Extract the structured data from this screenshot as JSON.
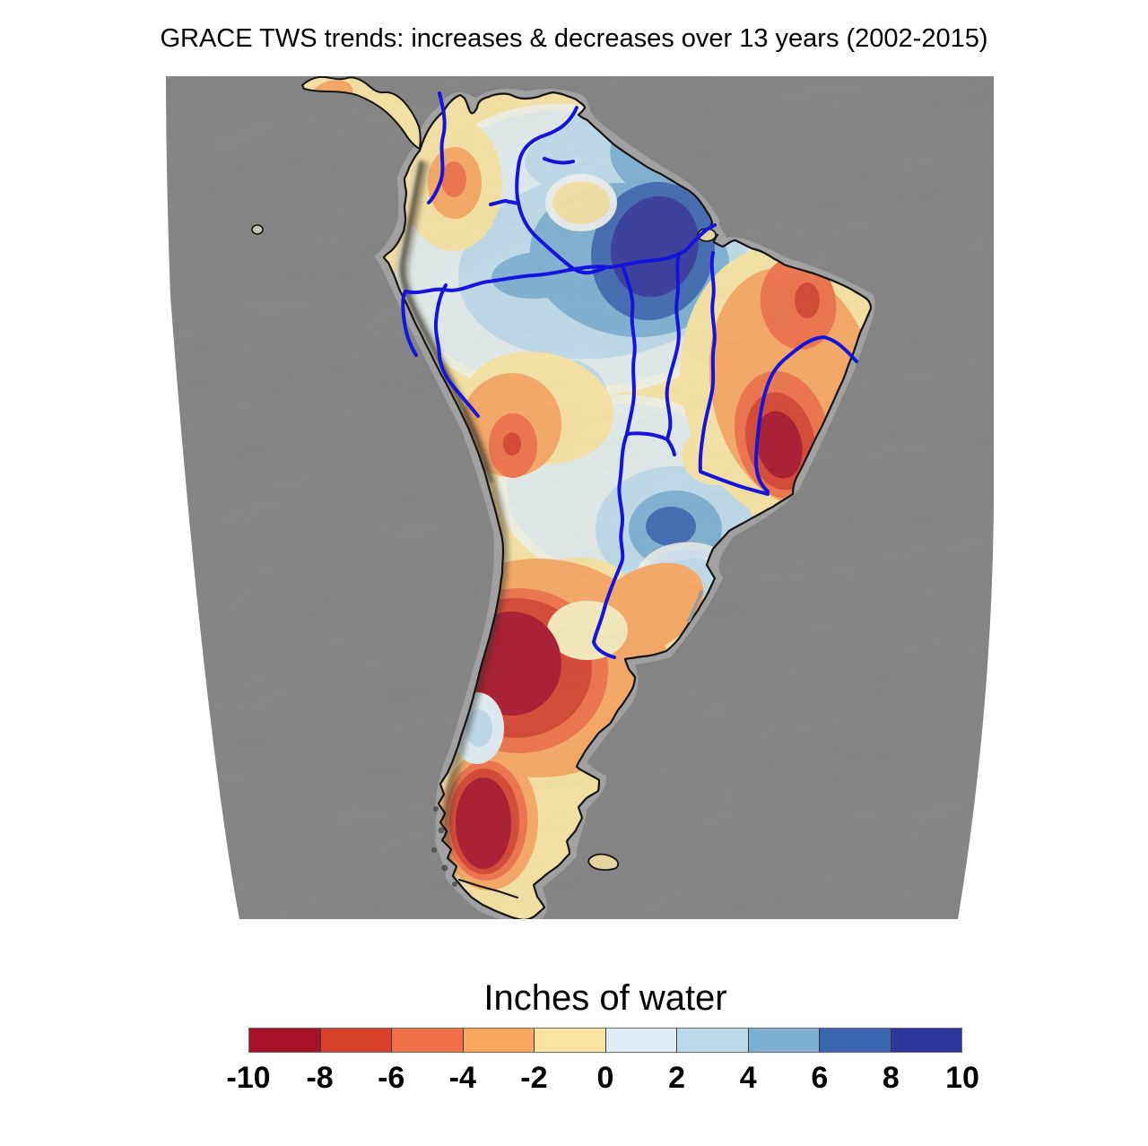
{
  "title": "GRACE TWS trends: increases & decreases over 13 years (2002-2015)",
  "colorbar": {
    "label": "Inches of water",
    "tick_labels": [
      "-10",
      "-8",
      "-6",
      "-4",
      "-2",
      "0",
      "2",
      "4",
      "6",
      "8",
      "10"
    ],
    "segment_colors": [
      "#a81227",
      "#d6402d",
      "#ef6f46",
      "#f9a760",
      "#f8e3a2",
      "#e0edf4",
      "#bcdcea",
      "#7bafd3",
      "#3a67b1",
      "#2f359b"
    ]
  },
  "map": {
    "subject": "South America terrestrial water storage trend, shaded-relief base",
    "ocean_color": "#888888",
    "land_relief_color": "#f2efe6",
    "shelf_halo_color": "#bdbdbd",
    "river_color": "#1414dd",
    "coastline_color": "#141414",
    "cream_color": "#f6ebbc",
    "andes_shadow_color": "#3c382e",
    "regions": [
      {
        "name": "central-amazon",
        "trend": "strong increase",
        "band": "+8 to +10 in"
      },
      {
        "name": "guyana-venezuela",
        "trend": "slight increase",
        "band": "+2 to +6 in"
      },
      {
        "name": "colombia-andes",
        "trend": "moderate decrease",
        "band": "-4 to -6 in"
      },
      {
        "name": "eastern-brazil",
        "trend": "strong decrease",
        "band": "-8 to -10 in"
      },
      {
        "name": "peru-bolivia-andes",
        "trend": "moderate decrease",
        "band": "-4 to -8 in"
      },
      {
        "name": "parana-basin",
        "trend": "moderate increase",
        "band": "+4 to +8 in"
      },
      {
        "name": "uruguay-coast",
        "trend": "slight increase",
        "band": "+2 to +4 in"
      },
      {
        "name": "northern-patagonia-argentina",
        "trend": "strong decrease",
        "band": "-8 to -10 in"
      },
      {
        "name": "southern-patagonia",
        "trend": "strong decrease",
        "band": "-8 to -10 in"
      },
      {
        "name": "chile-coast",
        "trend": "slight increase",
        "band": "0 to +2 in"
      }
    ]
  }
}
